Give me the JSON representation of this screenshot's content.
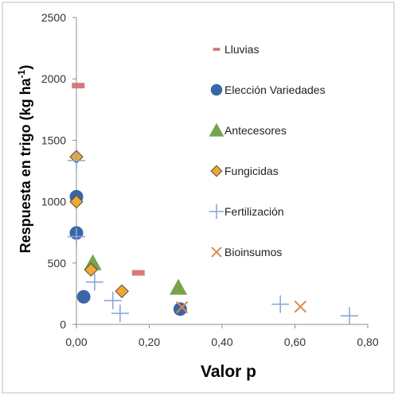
{
  "chart_data": {
    "type": "scatter",
    "title": "",
    "xlabel": "Valor p",
    "ylabel": "Respuesta en trigo (kg ha",
    "ylabel_sup": "-1",
    "ylabel_close": ")",
    "xlim": [
      0,
      0.8
    ],
    "ylim": [
      0,
      2500
    ],
    "x_ticks": [
      "0,00",
      "0,20",
      "0,40",
      "0,60",
      "0,80"
    ],
    "x_tick_values": [
      0,
      0.2,
      0.4,
      0.6,
      0.8
    ],
    "y_ticks": [
      "0",
      "500",
      "1000",
      "1500",
      "2000",
      "2500"
    ],
    "y_tick_values": [
      0,
      500,
      1000,
      1500,
      2000,
      2500
    ],
    "grid": false,
    "legend_position": "right",
    "series": [
      {
        "name": "Lluvias",
        "marker": "dash",
        "color": "#d47a7a",
        "points": [
          [
            0.005,
            1945
          ],
          [
            0.17,
            420
          ]
        ]
      },
      {
        "name": "Elección Variedades",
        "marker": "circle",
        "color": "#3a66a8",
        "points": [
          [
            0.0,
            1040
          ],
          [
            0.0,
            745
          ],
          [
            0.02,
            225
          ],
          [
            0.285,
            125
          ]
        ]
      },
      {
        "name": "Antecesores",
        "marker": "triangle",
        "color": "#77a34c",
        "points": [
          [
            0.045,
            500
          ],
          [
            0.28,
            300
          ]
        ]
      },
      {
        "name": "Fungicidas",
        "marker": "diamond",
        "color": "#f0a830",
        "points": [
          [
            0.0,
            1365
          ],
          [
            0.0,
            1000
          ],
          [
            0.04,
            445
          ],
          [
            0.125,
            270
          ]
        ]
      },
      {
        "name": "Fertilización",
        "marker": "plus",
        "color": "#8aa8d8",
        "points": [
          [
            0.0,
            1335
          ],
          [
            0.0,
            715
          ],
          [
            0.05,
            345
          ],
          [
            0.1,
            195
          ],
          [
            0.12,
            90
          ],
          [
            0.56,
            165
          ],
          [
            0.75,
            70
          ]
        ]
      },
      {
        "name": "Bioinsumos",
        "marker": "x",
        "color": "#dc8a50",
        "points": [
          [
            0.29,
            140
          ],
          [
            0.615,
            145
          ]
        ]
      }
    ]
  }
}
